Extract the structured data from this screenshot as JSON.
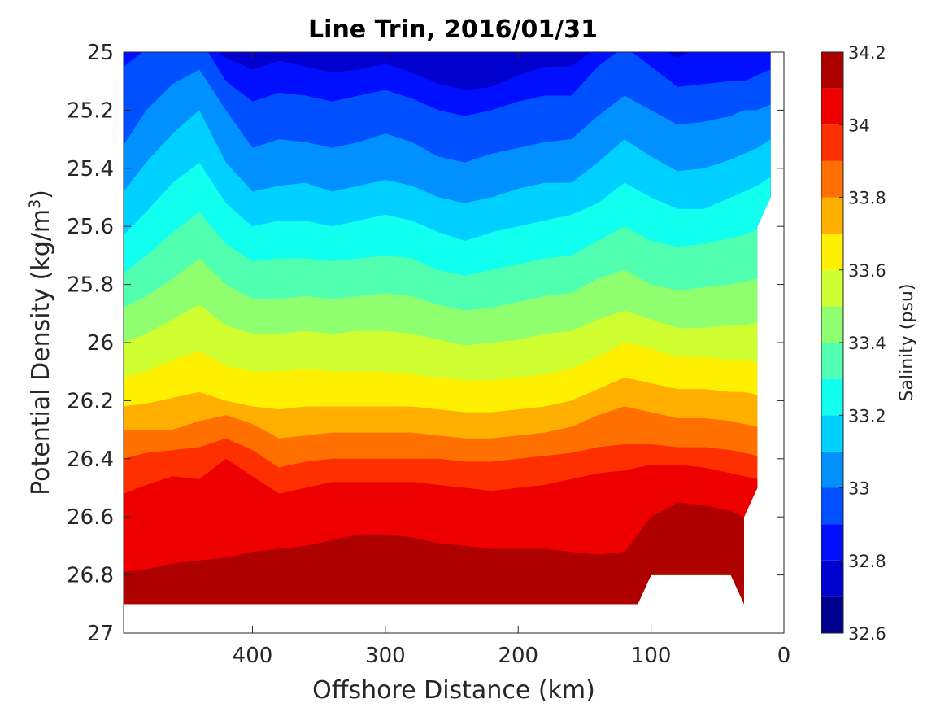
{
  "chart_data": {
    "type": "filled-contour",
    "title": "Line Trin, 2016/01/31",
    "xlabel": "Offshore Distance (km)",
    "ylabel_parts": {
      "main": "Potential Density (kg/m",
      "sup": "3",
      "end": ")"
    },
    "colorbar_label": "Salinity (psu)",
    "x_ticks": [
      400,
      300,
      200,
      100,
      0
    ],
    "x_tick_labels": [
      "400",
      "300",
      "200",
      "100",
      "0"
    ],
    "xlim": [
      0,
      497
    ],
    "x_reversed": true,
    "y_ticks": [
      25,
      25.2,
      25.4,
      25.6,
      25.8,
      26,
      26.2,
      26.4,
      26.6,
      26.8,
      27
    ],
    "y_tick_labels": [
      "25",
      "25.2",
      "25.4",
      "25.6",
      "25.8",
      "26",
      "26.2",
      "26.4",
      "26.6",
      "26.8",
      "27"
    ],
    "ylim": [
      25,
      27
    ],
    "y_reversed": true,
    "colorbar_range": [
      32.6,
      34.2
    ],
    "colorbar_ticks": [
      32.6,
      32.8,
      33,
      33.2,
      33.4,
      33.6,
      33.8,
      34,
      34.2
    ],
    "colorbar_tick_labels": [
      "32.6",
      "32.8",
      "33",
      "33.2",
      "33.4",
      "33.6",
      "33.8",
      "34",
      "34.2"
    ],
    "levels": [
      32.6,
      32.7,
      32.8,
      32.9,
      33.0,
      33.1,
      33.2,
      33.3,
      33.4,
      33.5,
      33.6,
      33.7,
      33.8,
      33.9,
      34.0,
      34.1,
      34.2
    ],
    "colormap": [
      "#00008f",
      "#0000cf",
      "#0010ff",
      "#0050ff",
      "#0090ff",
      "#00d0ff",
      "#10ffef",
      "#50ffaf",
      "#90ff6f",
      "#cfff30",
      "#ffef00",
      "#ffaf00",
      "#ff7000",
      "#ff3000",
      "#ef0000",
      "#af0000"
    ],
    "distance_km": [
      497,
      480,
      460,
      440,
      420,
      400,
      380,
      360,
      340,
      320,
      300,
      280,
      260,
      240,
      220,
      200,
      180,
      160,
      140,
      120,
      100,
      80,
      60,
      40,
      30,
      20,
      10
    ],
    "contour_lines": [
      {
        "level": 32.8,
        "density": [
          24.95,
          24.95,
          24.95,
          24.95,
          25.02,
          25.06,
          25.03,
          25.05,
          25.07,
          25.06,
          25.04,
          25.07,
          25.11,
          25.13,
          25.12,
          25.08,
          25.05,
          25.05,
          24.98,
          24.95,
          24.97,
          25.02,
          24.97,
          24.95,
          24.95,
          24.95,
          24.95
        ]
      },
      {
        "level": 32.9,
        "density": [
          25.05,
          24.99,
          24.95,
          24.95,
          25.1,
          25.17,
          25.14,
          25.15,
          25.17,
          25.15,
          25.13,
          25.16,
          25.2,
          25.22,
          25.2,
          25.17,
          25.15,
          25.15,
          25.05,
          24.98,
          25.05,
          25.12,
          25.11,
          25.1,
          25.1,
          25.08,
          25.06
        ]
      },
      {
        "level": 33.0,
        "density": [
          25.32,
          25.2,
          25.11,
          25.06,
          25.2,
          25.33,
          25.3,
          25.31,
          25.33,
          25.31,
          25.28,
          25.31,
          25.36,
          25.38,
          25.35,
          25.33,
          25.31,
          25.3,
          25.22,
          25.15,
          25.2,
          25.25,
          25.24,
          25.22,
          25.2,
          25.2,
          25.18
        ]
      },
      {
        "level": 33.1,
        "density": [
          25.48,
          25.38,
          25.28,
          25.2,
          25.38,
          25.48,
          25.46,
          25.45,
          25.48,
          25.46,
          25.44,
          25.46,
          25.5,
          25.52,
          25.5,
          25.47,
          25.45,
          25.45,
          25.38,
          25.3,
          25.36,
          25.41,
          25.4,
          25.37,
          25.35,
          25.33,
          25.3
        ]
      },
      {
        "level": 33.2,
        "density": [
          25.63,
          25.55,
          25.45,
          25.38,
          25.52,
          25.6,
          25.58,
          25.58,
          25.6,
          25.58,
          25.56,
          25.58,
          25.62,
          25.65,
          25.62,
          25.6,
          25.58,
          25.56,
          25.52,
          25.45,
          25.5,
          25.54,
          25.54,
          25.5,
          25.48,
          25.46,
          25.43
        ]
      },
      {
        "level": 33.3,
        "density": [
          25.76,
          25.7,
          25.62,
          25.55,
          25.66,
          25.72,
          25.71,
          25.71,
          25.72,
          25.71,
          25.7,
          25.71,
          25.75,
          25.77,
          25.75,
          25.73,
          25.71,
          25.7,
          25.65,
          25.6,
          25.65,
          25.67,
          25.66,
          25.64,
          25.63,
          25.61,
          25.6
        ]
      },
      {
        "level": 33.4,
        "density": [
          25.88,
          25.84,
          25.78,
          25.71,
          25.8,
          25.85,
          25.85,
          25.84,
          25.85,
          25.84,
          25.83,
          25.84,
          25.87,
          25.89,
          25.88,
          25.86,
          25.84,
          25.83,
          25.78,
          25.75,
          25.8,
          25.82,
          25.81,
          25.8,
          25.79,
          25.78,
          25.77
        ]
      },
      {
        "level": 33.5,
        "density": [
          26.0,
          25.97,
          25.92,
          25.87,
          25.94,
          25.97,
          25.97,
          25.96,
          25.97,
          25.96,
          25.96,
          25.97,
          25.99,
          26.01,
          26.0,
          25.99,
          25.97,
          25.96,
          25.92,
          25.89,
          25.92,
          25.95,
          25.95,
          25.94,
          25.94,
          25.93,
          25.92
        ]
      },
      {
        "level": 33.6,
        "density": [
          26.12,
          26.1,
          26.06,
          26.03,
          26.08,
          26.1,
          26.1,
          26.09,
          26.1,
          26.1,
          26.1,
          26.11,
          26.12,
          26.13,
          26.13,
          26.12,
          26.11,
          26.09,
          26.05,
          26.0,
          26.02,
          26.05,
          26.05,
          26.06,
          26.06,
          26.07,
          26.07
        ]
      },
      {
        "level": 33.7,
        "density": [
          26.22,
          26.21,
          26.19,
          26.17,
          26.2,
          26.22,
          26.23,
          26.22,
          26.22,
          26.22,
          26.22,
          26.22,
          26.23,
          26.24,
          26.24,
          26.23,
          26.22,
          26.2,
          26.16,
          26.12,
          26.14,
          26.16,
          26.16,
          26.17,
          26.17,
          26.18,
          26.19
        ]
      },
      {
        "level": 33.8,
        "density": [
          26.3,
          26.3,
          26.3,
          26.27,
          26.25,
          26.28,
          26.33,
          26.32,
          26.31,
          26.31,
          26.31,
          26.31,
          26.32,
          26.33,
          26.33,
          26.32,
          26.31,
          26.29,
          26.25,
          26.22,
          26.24,
          26.26,
          26.26,
          26.27,
          26.28,
          26.29,
          26.3
        ]
      },
      {
        "level": 33.9,
        "density": [
          26.4,
          26.38,
          26.37,
          26.36,
          26.33,
          26.37,
          26.43,
          26.41,
          26.4,
          26.4,
          26.4,
          26.4,
          26.4,
          26.41,
          26.41,
          26.4,
          26.39,
          26.38,
          26.36,
          26.35,
          26.35,
          26.36,
          26.36,
          26.37,
          26.38,
          26.39,
          26.4
        ]
      },
      {
        "level": 34.0,
        "density": [
          26.52,
          26.49,
          26.46,
          26.47,
          26.4,
          26.46,
          26.52,
          26.5,
          26.48,
          26.48,
          26.48,
          26.48,
          26.49,
          26.5,
          26.51,
          26.5,
          26.49,
          26.47,
          26.45,
          26.44,
          26.42,
          26.42,
          26.43,
          26.45,
          26.46,
          26.47,
          26.48
        ]
      },
      {
        "level": 34.1,
        "density": [
          26.79,
          26.78,
          26.76,
          26.75,
          26.74,
          26.72,
          26.71,
          26.7,
          26.68,
          26.66,
          26.66,
          26.67,
          26.69,
          26.7,
          26.71,
          26.71,
          26.71,
          26.72,
          26.73,
          26.72,
          26.6,
          26.55,
          26.56,
          26.58,
          26.6,
          26.62,
          26.64
        ]
      }
    ],
    "data_coverage": [
      {
        "distance_km": 497,
        "density_min": 25,
        "density_max": 26.9
      },
      {
        "distance_km": 110,
        "density_min": 25,
        "density_max": 26.9
      },
      {
        "distance_km": 100,
        "density_min": 25,
        "density_max": 26.8
      },
      {
        "distance_km": 40,
        "density_min": 25,
        "density_max": 26.8
      },
      {
        "distance_km": 30,
        "density_min": 25,
        "density_max": 26.9
      },
      {
        "distance_km": 30,
        "density_min": 25,
        "density_max": 26.6
      },
      {
        "distance_km": 20,
        "density_min": 25,
        "density_max": 26.5
      },
      {
        "distance_km": 20,
        "density_min": 25,
        "density_max": 25.6
      },
      {
        "distance_km": 10,
        "density_min": 25,
        "density_max": 25.5
      }
    ]
  }
}
